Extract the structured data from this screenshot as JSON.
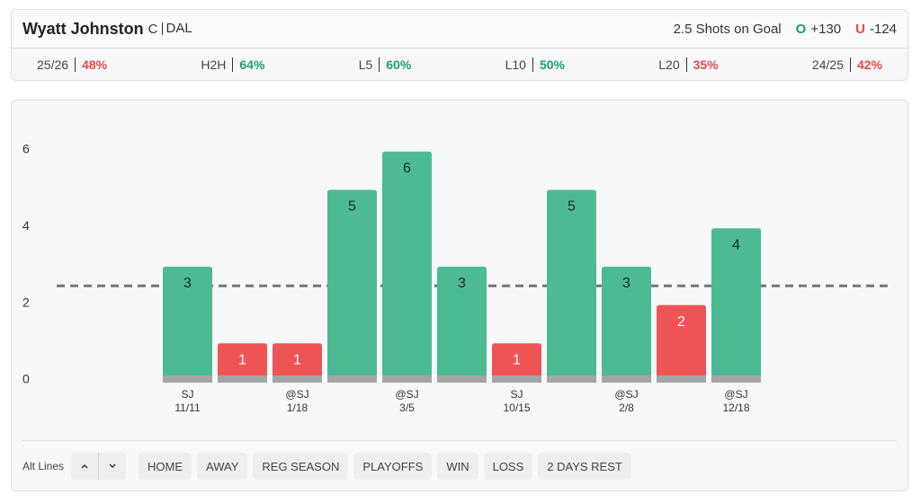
{
  "header": {
    "player": "Wyatt Johnston",
    "position": "C",
    "team": "DAL",
    "prop": "2.5 Shots on Goal",
    "over_label": "O",
    "over_odds": "+130",
    "under_label": "U",
    "under_odds": "-124"
  },
  "stats": [
    {
      "label": "25/26",
      "value": "48%",
      "color": "#e5484d"
    },
    {
      "label": "H2H",
      "value": "64%",
      "color": "#1f9e72"
    },
    {
      "label": "L5",
      "value": "60%",
      "color": "#1f9e72"
    },
    {
      "label": "L10",
      "value": "50%",
      "color": "#1f9e72"
    },
    {
      "label": "L20",
      "value": "35%",
      "color": "#e5484d"
    },
    {
      "label": "24/25",
      "value": "42%",
      "color": "#e5484d"
    }
  ],
  "chart_data": {
    "type": "bar",
    "categories": [
      "SJ",
      null,
      "@SJ",
      null,
      "@SJ",
      null,
      "SJ",
      null,
      "@SJ",
      null,
      "@SJ"
    ],
    "category_dates": [
      "11/11",
      null,
      "1/18",
      null,
      "3/5",
      null,
      "10/15",
      null,
      "2/8",
      null,
      "12/18"
    ],
    "values": [
      3,
      1,
      1,
      5,
      6,
      3,
      1,
      5,
      3,
      2,
      4
    ],
    "threshold": 2.5,
    "colors": {
      "over": "#4cbb93",
      "under": "#ef5455"
    },
    "ylim": [
      0,
      7
    ],
    "yticks": [
      0,
      2,
      4,
      6
    ],
    "grid": false
  },
  "footer": {
    "alt_lines": "Alt Lines",
    "filters": [
      "HOME",
      "AWAY",
      "REG SEASON",
      "PLAYOFFS",
      "WIN",
      "LOSS",
      "2 DAYS REST"
    ]
  }
}
